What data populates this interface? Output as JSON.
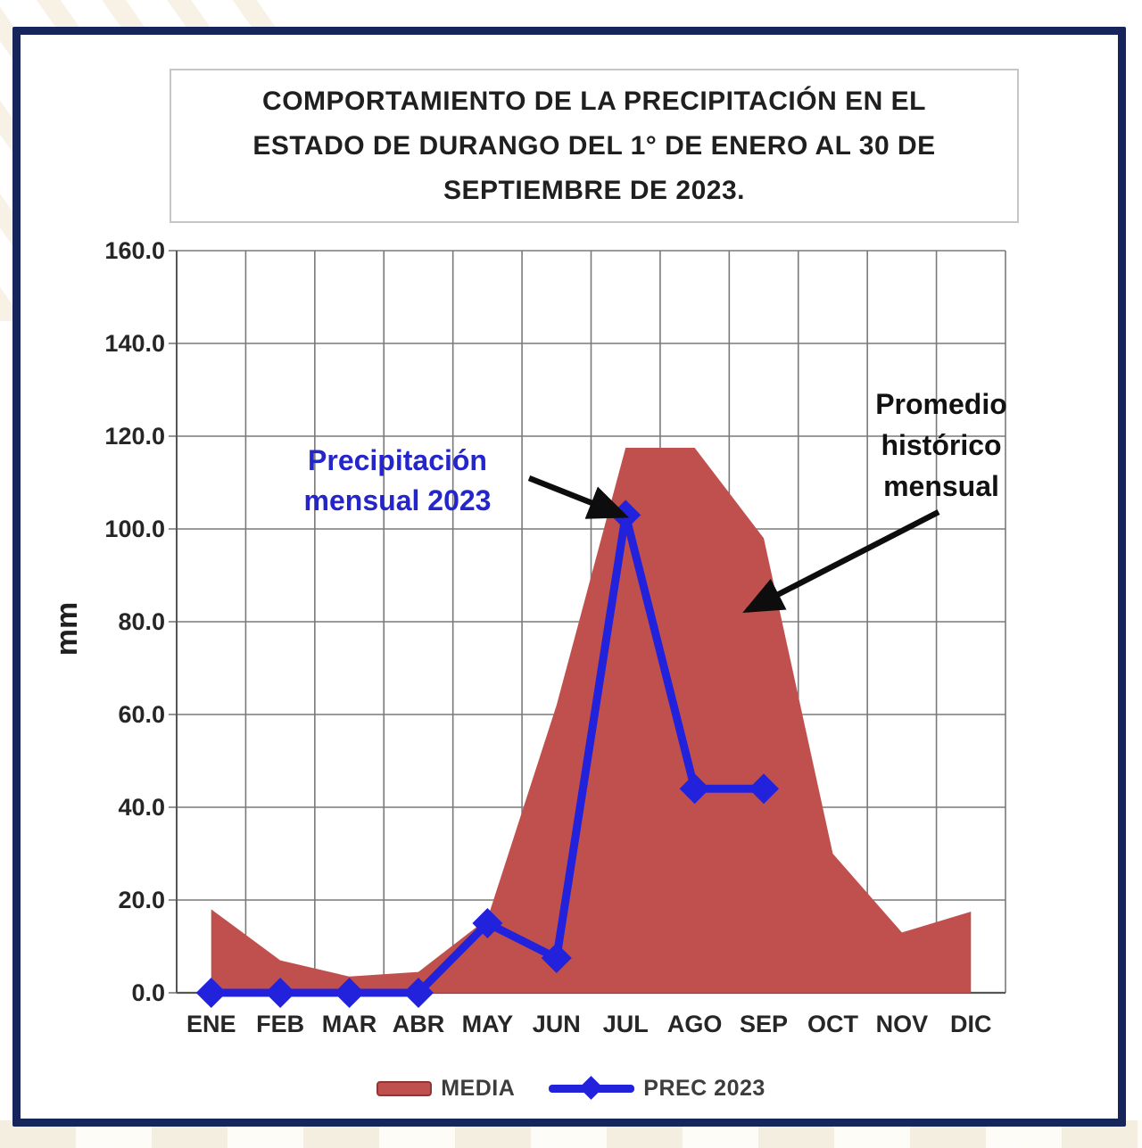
{
  "page": {
    "title_lines": [
      "COMPORTAMIENTO DE LA PRECIPITACIÓN EN EL",
      "ESTADO DE DURANGO DEL 1° DE ENERO AL 30 DE",
      "SEPTIEMBRE DE 2023."
    ]
  },
  "chart_data": {
    "type": "area",
    "subtype": "area-plus-line-combo",
    "title": "COMPORTAMIENTO DE LA PRECIPITACIÓN EN EL ESTADO DE DURANGO DEL 1° DE ENERO AL 30 DE SEPTIEMBRE DE 2023.",
    "categories": [
      "ENE",
      "FEB",
      "MAR",
      "ABR",
      "MAY",
      "JUN",
      "JUL",
      "AGO",
      "SEP",
      "OCT",
      "NOV",
      "DIC"
    ],
    "series": [
      {
        "name": "MEDIA",
        "type": "area",
        "color": "#c0504d",
        "values": [
          18,
          7,
          3.5,
          4.5,
          16,
          62,
          117.5,
          117.5,
          98,
          30,
          13,
          17.5
        ]
      },
      {
        "name": "PREC 2023",
        "type": "line",
        "marker": "diamond",
        "color": "#2222dd",
        "values": [
          0,
          0,
          0,
          0,
          15,
          7.5,
          103,
          44,
          44,
          null,
          null,
          null
        ]
      }
    ],
    "xlabel": "",
    "ylabel": "mm",
    "ylim": [
      0,
      160
    ],
    "ytick_labels": [
      "0.0",
      "20.0",
      "40.0",
      "60.0",
      "80.0",
      "100.0",
      "120.0",
      "140.0",
      "160.0"
    ],
    "grid": true,
    "legend_position": "bottom",
    "annotations": [
      {
        "text_lines": [
          "Precipitación",
          "mensual 2023"
        ],
        "color": "#2525cc",
        "points_to": "JUL value of PREC 2023 line",
        "arrow_from": [
          593,
          536
        ],
        "arrow_to": [
          699,
          578
        ]
      },
      {
        "text_lines": [
          "Promedio",
          "histórico",
          "mensual"
        ],
        "color": "#121212",
        "points_to": "MEDIA area between AGO and SEP",
        "arrow_from": [
          1052,
          574
        ],
        "arrow_to": [
          838,
          684
        ]
      }
    ],
    "arrow_color": "#0d0d0d",
    "grid_color": "#7a7a7a",
    "frame_color": "#16265b"
  },
  "legend": {
    "items": [
      {
        "label": "MEDIA",
        "swatch": "red-rectangle"
      },
      {
        "label": "PREC 2023",
        "swatch": "blue-line-with-diamond"
      }
    ]
  }
}
